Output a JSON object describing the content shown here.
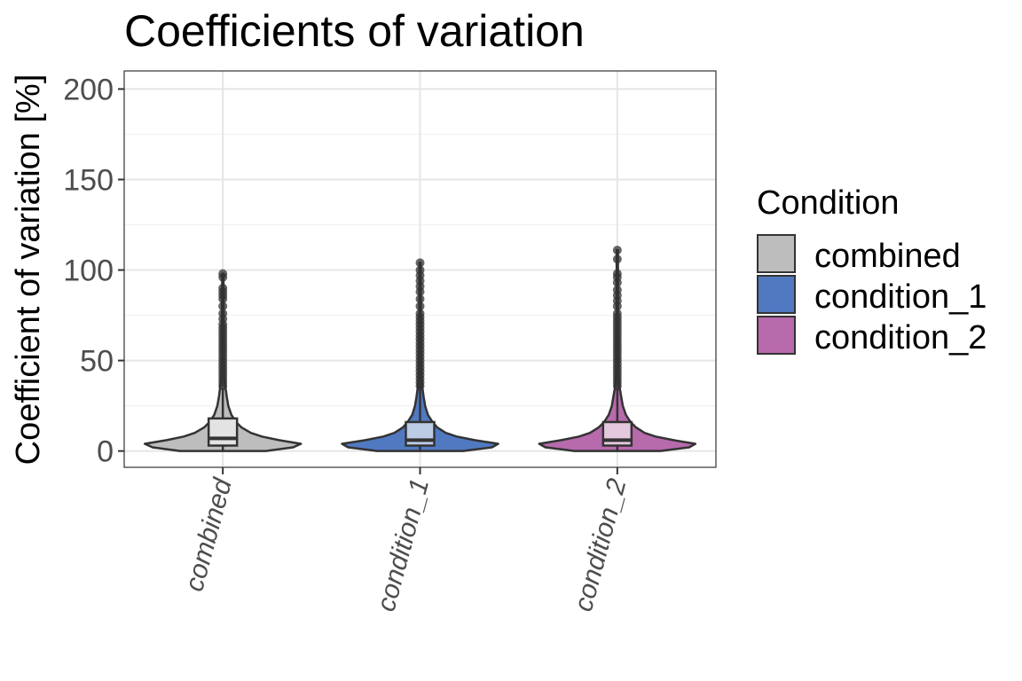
{
  "chart_data": {
    "type": "violin",
    "title": "Coefficients of variation",
    "xlabel": "",
    "ylabel": "Coefficient of variation [%]",
    "ylim": [
      -9,
      210
    ],
    "yticks": [
      0,
      50,
      100,
      150,
      200
    ],
    "categories": [
      "combined",
      "condition_1",
      "condition_2"
    ],
    "legend": {
      "title": "Condition",
      "position": "right",
      "entries": [
        "combined",
        "condition_1",
        "condition_2"
      ]
    },
    "colors": {
      "combined": "#bdbdbd",
      "condition_1": "#5179c2",
      "condition_2": "#b76aac",
      "box_combined": "#e3e3e3",
      "box_condition_1": "#bccbe6",
      "box_condition_2": "#e4c8de",
      "outline": "#333333",
      "grid_major": "#e5e5e5",
      "grid_minor": "#f2f2f2"
    },
    "grid": true,
    "series": [
      {
        "name": "combined",
        "box": {
          "q1": 3,
          "median": 7,
          "q3": 18,
          "whisker_low": 0,
          "whisker_high": 35
        },
        "max": 98,
        "outliers": [
          36,
          38,
          40,
          42,
          44,
          46,
          48,
          50,
          52,
          54,
          56,
          58,
          60,
          62,
          64,
          66,
          68,
          70,
          73,
          76,
          80,
          84,
          86,
          88,
          90,
          96,
          98
        ],
        "density": [
          [
            0,
            0.55
          ],
          [
            2,
            0.9
          ],
          [
            4,
            1.0
          ],
          [
            6,
            0.72
          ],
          [
            8,
            0.5
          ],
          [
            10,
            0.36
          ],
          [
            13,
            0.24
          ],
          [
            16,
            0.17
          ],
          [
            20,
            0.11
          ],
          [
            25,
            0.07
          ],
          [
            30,
            0.05
          ],
          [
            35,
            0.035
          ],
          [
            40,
            0.02
          ],
          [
            45,
            0.015
          ],
          [
            60,
            0.012
          ],
          [
            80,
            0.01
          ],
          [
            98,
            0.008
          ]
        ]
      },
      {
        "name": "condition_1",
        "box": {
          "q1": 3,
          "median": 6,
          "q3": 16,
          "whisker_low": 0,
          "whisker_high": 36
        },
        "max": 104,
        "outliers": [
          36,
          38,
          40,
          42,
          44,
          46,
          48,
          50,
          52,
          54,
          56,
          58,
          60,
          62,
          64,
          66,
          68,
          70,
          72,
          74,
          76,
          80,
          84,
          88,
          91,
          94,
          97,
          100,
          104
        ],
        "density": [
          [
            0,
            0.55
          ],
          [
            2,
            0.92
          ],
          [
            4,
            1.0
          ],
          [
            6,
            0.7
          ],
          [
            8,
            0.47
          ],
          [
            10,
            0.33
          ],
          [
            13,
            0.22
          ],
          [
            16,
            0.16
          ],
          [
            20,
            0.1
          ],
          [
            25,
            0.065
          ],
          [
            30,
            0.045
          ],
          [
            35,
            0.03
          ],
          [
            40,
            0.018
          ],
          [
            50,
            0.014
          ],
          [
            70,
            0.01
          ],
          [
            104,
            0.008
          ]
        ]
      },
      {
        "name": "condition_2",
        "box": {
          "q1": 3,
          "median": 6,
          "q3": 16,
          "whisker_low": 0,
          "whisker_high": 35
        },
        "max": 111,
        "outliers": [
          36,
          38,
          40,
          42,
          44,
          46,
          48,
          50,
          52,
          54,
          56,
          58,
          60,
          62,
          64,
          66,
          68,
          70,
          72,
          74,
          76,
          80,
          83,
          86,
          89,
          93,
          96,
          98,
          106,
          111
        ],
        "density": [
          [
            0,
            0.55
          ],
          [
            2,
            0.92
          ],
          [
            4,
            1.0
          ],
          [
            6,
            0.72
          ],
          [
            8,
            0.49
          ],
          [
            10,
            0.35
          ],
          [
            13,
            0.24
          ],
          [
            16,
            0.17
          ],
          [
            20,
            0.11
          ],
          [
            25,
            0.07
          ],
          [
            30,
            0.05
          ],
          [
            35,
            0.03
          ],
          [
            40,
            0.018
          ],
          [
            50,
            0.014
          ],
          [
            70,
            0.01
          ],
          [
            111,
            0.008
          ]
        ]
      }
    ]
  }
}
